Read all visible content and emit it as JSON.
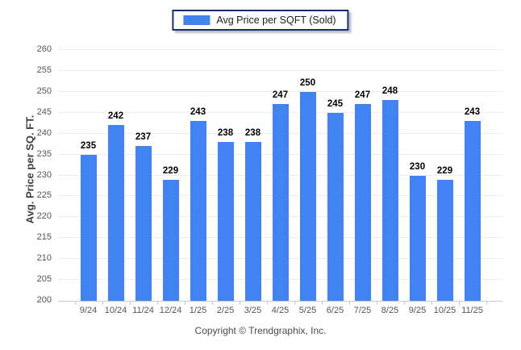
{
  "legend": {
    "label": "Avg Price per SQFT (Sold)",
    "swatch_color": "#4183f2"
  },
  "footer": {
    "copyright": "Copyright © Trendgraphix, Inc."
  },
  "chart_data": {
    "type": "bar",
    "title": "",
    "series_name": "Avg Price per SQFT (Sold)",
    "categories": [
      "9/24",
      "10/24",
      "11/24",
      "12/24",
      "1/25",
      "2/25",
      "3/25",
      "4/25",
      "5/25",
      "6/25",
      "7/25",
      "8/25",
      "9/25",
      "10/25",
      "11/25"
    ],
    "values": [
      235,
      242,
      237,
      229,
      243,
      238,
      238,
      247,
      250,
      245,
      247,
      248,
      230,
      229,
      243
    ],
    "xlabel": "",
    "ylabel": "Avg. Price per SQ. FT.",
    "ylim": [
      200,
      260
    ],
    "ytick_step": 5,
    "grid": "horizontal",
    "legend_position": "top-center",
    "bar_color": "#4183f2",
    "grid_color": "#ededed",
    "axis_color": "#c9c9d1",
    "tick_label_color": "#54555c",
    "value_label_color": "#000000"
  }
}
